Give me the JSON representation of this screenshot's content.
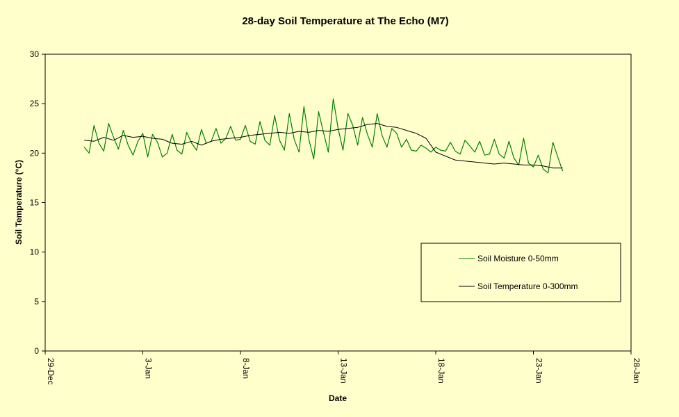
{
  "chart_data": {
    "type": "line",
    "title": "28-day Soil Temperature at The Echo (M7)",
    "xlabel": "Date",
    "ylabel": "Soil Temperature (°C)",
    "ylim": [
      0,
      30
    ],
    "yticks": [
      0,
      5,
      10,
      15,
      20,
      25,
      30
    ],
    "xlim": [
      "29-Dec",
      "28-Jan"
    ],
    "xticks": [
      "29-Dec",
      "3-Jan",
      "8-Jan",
      "13-Jan",
      "18-Jan",
      "23-Jan",
      "28-Jan"
    ],
    "grid": false,
    "legend_position": "bottom-right",
    "colors": {
      "background": "#ffffcc",
      "plot_background": "#ffffcc",
      "moisture_series": "#008000",
      "temperature_series": "#000000"
    },
    "series": [
      {
        "name": "Soil Moisture 0-50mm",
        "color": "#008000",
        "x": [
          "31-Dec 00:00",
          "31-Dec 06:00",
          "31-Dec 12:00",
          "31-Dec 18:00",
          "1-Jan 00:00",
          "1-Jan 06:00",
          "1-Jan 12:00",
          "1-Jan 18:00",
          "2-Jan 00:00",
          "2-Jan 06:00",
          "2-Jan 12:00",
          "2-Jan 18:00",
          "3-Jan 00:00",
          "3-Jan 06:00",
          "3-Jan 12:00",
          "3-Jan 18:00",
          "4-Jan 00:00",
          "4-Jan 06:00",
          "4-Jan 12:00",
          "4-Jan 18:00",
          "5-Jan 00:00",
          "5-Jan 06:00",
          "5-Jan 12:00",
          "5-Jan 18:00",
          "6-Jan 00:00",
          "6-Jan 06:00",
          "6-Jan 12:00",
          "6-Jan 18:00",
          "7-Jan 00:00",
          "7-Jan 06:00",
          "7-Jan 12:00",
          "7-Jan 18:00",
          "8-Jan 00:00",
          "8-Jan 06:00",
          "8-Jan 12:00",
          "8-Jan 18:00",
          "9-Jan 00:00",
          "9-Jan 06:00",
          "9-Jan 12:00",
          "9-Jan 18:00",
          "10-Jan 00:00",
          "10-Jan 06:00",
          "10-Jan 12:00",
          "10-Jan 18:00",
          "11-Jan 00:00",
          "11-Jan 06:00",
          "11-Jan 12:00",
          "11-Jan 18:00",
          "12-Jan 00:00",
          "12-Jan 06:00",
          "12-Jan 12:00",
          "12-Jan 18:00",
          "13-Jan 00:00",
          "13-Jan 06:00",
          "13-Jan 12:00",
          "13-Jan 18:00",
          "14-Jan 00:00",
          "14-Jan 06:00",
          "14-Jan 12:00",
          "14-Jan 18:00",
          "15-Jan 00:00",
          "15-Jan 06:00",
          "15-Jan 12:00",
          "15-Jan 18:00",
          "16-Jan 00:00",
          "16-Jan 06:00",
          "16-Jan 12:00",
          "16-Jan 18:00",
          "17-Jan 00:00",
          "17-Jan 06:00",
          "17-Jan 12:00",
          "17-Jan 18:00",
          "18-Jan 00:00",
          "18-Jan 06:00",
          "18-Jan 12:00",
          "18-Jan 18:00",
          "19-Jan 00:00",
          "19-Jan 06:00",
          "19-Jan 12:00",
          "19-Jan 18:00",
          "20-Jan 00:00",
          "20-Jan 06:00",
          "20-Jan 12:00",
          "20-Jan 18:00",
          "21-Jan 00:00",
          "21-Jan 06:00",
          "21-Jan 12:00",
          "21-Jan 18:00",
          "22-Jan 00:00",
          "22-Jan 06:00",
          "22-Jan 12:00",
          "22-Jan 18:00",
          "23-Jan 00:00",
          "23-Jan 06:00",
          "23-Jan 12:00",
          "23-Jan 18:00",
          "24-Jan 00:00",
          "24-Jan 06:00",
          "24-Jan 12:00"
        ],
        "values": [
          20.6,
          20.0,
          22.8,
          21.0,
          20.2,
          23.0,
          21.6,
          20.4,
          22.3,
          20.8,
          19.8,
          21.2,
          22.0,
          19.6,
          21.9,
          21.1,
          19.6,
          20.0,
          21.9,
          20.3,
          19.9,
          22.1,
          21.0,
          20.3,
          22.4,
          21.0,
          21.2,
          22.5,
          21.0,
          21.5,
          22.7,
          21.3,
          21.4,
          22.8,
          21.2,
          20.9,
          23.2,
          21.3,
          20.8,
          23.8,
          21.3,
          20.3,
          24.0,
          21.4,
          20.1,
          24.7,
          21.4,
          19.4,
          24.2,
          22.1,
          20.1,
          25.5,
          22.5,
          20.3,
          24.0,
          22.8,
          20.8,
          23.6,
          21.9,
          20.6,
          24.0,
          21.8,
          20.6,
          22.5,
          22.0,
          20.6,
          21.4,
          20.3,
          20.2,
          20.8,
          20.5,
          20.1,
          20.6,
          20.3,
          20.2,
          21.1,
          20.2,
          19.9,
          21.3,
          20.7,
          20.1,
          21.2,
          19.8,
          19.9,
          21.4,
          19.9,
          19.5,
          21.2,
          19.5,
          18.8,
          21.5,
          19.0,
          18.6,
          19.8,
          18.4,
          18.0,
          21.1,
          19.6,
          18.2
        ]
      },
      {
        "name": "Soil Temperature 0-300mm",
        "color": "#000000",
        "x": [
          "31-Dec 00:00",
          "31-Dec 12:00",
          "1-Jan 00:00",
          "1-Jan 12:00",
          "2-Jan 00:00",
          "2-Jan 12:00",
          "3-Jan 00:00",
          "3-Jan 12:00",
          "4-Jan 00:00",
          "4-Jan 12:00",
          "5-Jan 00:00",
          "5-Jan 12:00",
          "6-Jan 00:00",
          "6-Jan 12:00",
          "7-Jan 00:00",
          "7-Jan 12:00",
          "8-Jan 00:00",
          "8-Jan 12:00",
          "9-Jan 00:00",
          "9-Jan 12:00",
          "10-Jan 00:00",
          "10-Jan 12:00",
          "11-Jan 00:00",
          "11-Jan 12:00",
          "12-Jan 00:00",
          "12-Jan 12:00",
          "13-Jan 00:00",
          "13-Jan 12:00",
          "14-Jan 00:00",
          "14-Jan 12:00",
          "15-Jan 00:00",
          "15-Jan 12:00",
          "16-Jan 00:00",
          "16-Jan 12:00",
          "17-Jan 00:00",
          "17-Jan 12:00",
          "18-Jan 00:00",
          "18-Jan 12:00",
          "19-Jan 00:00",
          "19-Jan 12:00",
          "20-Jan 00:00",
          "20-Jan 12:00",
          "21-Jan 00:00",
          "21-Jan 12:00",
          "22-Jan 00:00",
          "22-Jan 12:00",
          "23-Jan 00:00",
          "23-Jan 12:00",
          "24-Jan 00:00",
          "24-Jan 12:00"
        ],
        "values": [
          21.3,
          21.2,
          21.6,
          21.3,
          21.8,
          21.6,
          21.7,
          21.5,
          21.4,
          21.0,
          20.9,
          21.2,
          20.8,
          21.2,
          21.4,
          21.5,
          21.6,
          21.8,
          21.9,
          22.0,
          22.1,
          22.0,
          22.2,
          22.1,
          22.3,
          22.2,
          22.4,
          22.5,
          22.6,
          22.9,
          23.0,
          22.7,
          22.6,
          22.3,
          22.0,
          21.5,
          20.1,
          19.7,
          19.3,
          19.2,
          19.1,
          19.0,
          18.9,
          19.0,
          18.9,
          18.8,
          18.8,
          18.7,
          18.5,
          18.5
        ]
      }
    ]
  }
}
